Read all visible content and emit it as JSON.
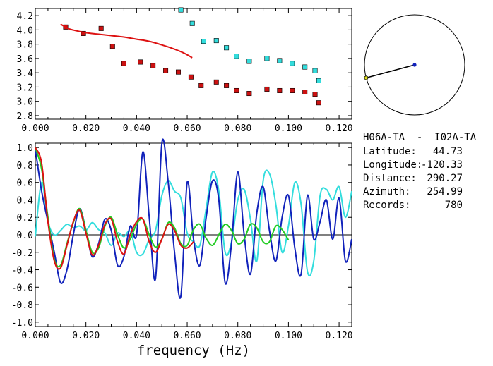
{
  "chart_data": [
    {
      "type": "scatter",
      "title": "",
      "xlabel": "",
      "ylabel": "",
      "xlim": [
        0.0,
        0.125
      ],
      "ylim": [
        2.75,
        4.3
      ],
      "xticks": [
        "0.000",
        "0.020",
        "0.040",
        "0.060",
        "0.080",
        "0.100",
        "0.120"
      ],
      "yticks": [
        "2.8",
        "3.0",
        "3.2",
        "3.4",
        "3.6",
        "3.8",
        "4.0",
        "4.2"
      ],
      "series": [
        {
          "kind": "markers",
          "color": "#cc1111",
          "points": [
            [
              0.012,
              4.04
            ],
            [
              0.019,
              3.95
            ],
            [
              0.026,
              4.02
            ],
            [
              0.0305,
              3.77
            ],
            [
              0.035,
              3.53
            ],
            [
              0.0415,
              3.55
            ],
            [
              0.0465,
              3.5
            ],
            [
              0.0515,
              3.43
            ],
            [
              0.0565,
              3.41
            ],
            [
              0.0615,
              3.34
            ],
            [
              0.0655,
              3.22
            ],
            [
              0.0715,
              3.27
            ],
            [
              0.0755,
              3.22
            ],
            [
              0.0795,
              3.15
            ],
            [
              0.0845,
              3.11
            ],
            [
              0.0915,
              3.17
            ],
            [
              0.0965,
              3.15
            ],
            [
              0.1015,
              3.15
            ],
            [
              0.1065,
              3.13
            ],
            [
              0.1105,
              3.1
            ],
            [
              0.112,
              2.98
            ]
          ]
        },
        {
          "kind": "markers",
          "color": "#33dddd",
          "points": [
            [
              0.0575,
              4.28
            ],
            [
              0.062,
              4.09
            ],
            [
              0.0665,
              3.84
            ],
            [
              0.0715,
              3.85
            ],
            [
              0.0755,
              3.75
            ],
            [
              0.0795,
              3.63
            ],
            [
              0.0845,
              3.56
            ],
            [
              0.0915,
              3.6
            ],
            [
              0.0965,
              3.57
            ],
            [
              0.1015,
              3.53
            ],
            [
              0.1065,
              3.48
            ],
            [
              0.1105,
              3.43
            ],
            [
              0.112,
              3.29
            ]
          ]
        },
        {
          "kind": "curve",
          "color": "#dd1111",
          "points": [
            [
              0.01,
              4.08
            ],
            [
              0.013,
              4.02
            ],
            [
              0.016,
              3.99
            ],
            [
              0.02,
              3.96
            ],
            [
              0.025,
              3.94
            ],
            [
              0.03,
              3.92
            ],
            [
              0.035,
              3.9
            ],
            [
              0.04,
              3.87
            ],
            [
              0.045,
              3.84
            ],
            [
              0.05,
              3.79
            ],
            [
              0.055,
              3.73
            ],
            [
              0.059,
              3.67
            ],
            [
              0.062,
              3.61
            ]
          ]
        }
      ]
    },
    {
      "type": "line",
      "title": "",
      "xlabel": "frequency (Hz)",
      "ylabel": "",
      "xlim": [
        0.0,
        0.125
      ],
      "ylim": [
        -1.05,
        1.05
      ],
      "xticks": [
        "0.000",
        "0.020",
        "0.040",
        "0.060",
        "0.080",
        "0.100",
        "0.120"
      ],
      "yticks": [
        "-1.0",
        "-0.8",
        "-0.6",
        "-0.4",
        "-0.2",
        "0.0",
        "0.2",
        "0.4",
        "0.6",
        "0.8",
        "1.0"
      ],
      "zero_line": true,
      "series": [
        {
          "color": "#33dddd",
          "x": [
            0.0,
            0.0025,
            0.005,
            0.0075,
            0.01,
            0.0125,
            0.015,
            0.0175,
            0.02,
            0.0225,
            0.025,
            0.0275,
            0.03,
            0.0325,
            0.035,
            0.0375,
            0.04,
            0.0425,
            0.045,
            0.0475,
            0.05,
            0.0525,
            0.055,
            0.0575,
            0.06,
            0.0625,
            0.065,
            0.0675,
            0.07,
            0.0725,
            0.075,
            0.0775,
            0.08,
            0.0825,
            0.085,
            0.0875,
            0.09,
            0.0925,
            0.095,
            0.0975,
            0.1,
            0.1025,
            0.105,
            0.1075,
            0.11,
            0.1125,
            0.115,
            0.1175,
            0.12,
            0.1225,
            0.125
          ],
          "y": [
            -0.02,
            0.6,
            0.15,
            0.0,
            0.05,
            0.12,
            0.08,
            0.1,
            0.05,
            0.14,
            0.06,
            0.02,
            -0.12,
            0.02,
            -0.02,
            0.04,
            -0.2,
            -0.22,
            -0.05,
            0.05,
            0.45,
            0.62,
            0.5,
            0.42,
            0.02,
            -0.08,
            -0.12,
            0.3,
            0.72,
            0.5,
            -0.2,
            -0.08,
            0.4,
            0.52,
            0.18,
            -0.3,
            0.62,
            0.7,
            0.35,
            -0.2,
            0.1,
            0.6,
            0.35,
            -0.42,
            -0.3,
            0.45,
            0.52,
            0.4,
            0.55,
            0.2,
            0.5
          ]
        },
        {
          "color": "#1122bb",
          "x": [
            0.0,
            0.0025,
            0.005,
            0.0075,
            0.01,
            0.0125,
            0.015,
            0.0175,
            0.02,
            0.0225,
            0.025,
            0.0275,
            0.03,
            0.0325,
            0.035,
            0.0375,
            0.04,
            0.0425,
            0.045,
            0.0475,
            0.05,
            0.0525,
            0.055,
            0.0575,
            0.06,
            0.0625,
            0.065,
            0.0675,
            0.07,
            0.0725,
            0.075,
            0.0775,
            0.08,
            0.0825,
            0.085,
            0.0875,
            0.09,
            0.0925,
            0.095,
            0.0975,
            0.1,
            0.1025,
            0.105,
            0.1075,
            0.11,
            0.1125,
            0.115,
            0.1175,
            0.12,
            0.1225,
            0.125
          ],
          "y": [
            0.98,
            0.5,
            0.15,
            -0.2,
            -0.55,
            -0.4,
            0.0,
            0.3,
            0.05,
            -0.25,
            -0.1,
            0.18,
            0.05,
            -0.35,
            -0.25,
            0.1,
            0.0,
            0.95,
            0.2,
            -0.5,
            1.05,
            0.6,
            -0.2,
            -0.7,
            0.6,
            -0.05,
            -0.35,
            0.2,
            0.62,
            0.4,
            -0.55,
            -0.1,
            0.72,
            0.0,
            -0.45,
            0.25,
            0.55,
            0.05,
            -0.3,
            0.2,
            0.45,
            -0.15,
            -0.45,
            0.45,
            -0.05,
            0.15,
            0.4,
            -0.05,
            0.42,
            -0.3,
            -0.05
          ]
        },
        {
          "color": "#22cc22",
          "x": [
            0.0,
            0.0025,
            0.005,
            0.0075,
            0.01,
            0.0125,
            0.015,
            0.0175,
            0.02,
            0.0225,
            0.025,
            0.0275,
            0.03,
            0.0325,
            0.035,
            0.0375,
            0.04,
            0.0425,
            0.045,
            0.0475,
            0.05,
            0.0525,
            0.055,
            0.0575,
            0.06,
            0.0625,
            0.065,
            0.0675,
            0.07,
            0.0725,
            0.075,
            0.0775,
            0.08,
            0.0825,
            0.085,
            0.0875,
            0.09,
            0.0925,
            0.095,
            0.0975,
            0.1
          ],
          "y": [
            1.0,
            0.75,
            0.2,
            -0.28,
            -0.35,
            -0.1,
            0.14,
            0.3,
            0.05,
            -0.2,
            -0.15,
            0.1,
            0.2,
            0.0,
            -0.15,
            -0.05,
            0.12,
            0.18,
            0.0,
            -0.14,
            -0.05,
            0.14,
            0.08,
            -0.1,
            -0.12,
            0.06,
            0.12,
            -0.04,
            -0.12,
            0.0,
            0.12,
            0.05,
            -0.1,
            -0.05,
            0.12,
            0.08,
            -0.08,
            -0.08,
            0.1,
            0.06,
            -0.06
          ]
        },
        {
          "color": "#dd1111",
          "x": [
            0.0,
            0.0025,
            0.005,
            0.0075,
            0.01,
            0.0125,
            0.015,
            0.0175,
            0.02,
            0.0225,
            0.025,
            0.0275,
            0.03,
            0.0325,
            0.035,
            0.0375,
            0.04,
            0.0425,
            0.045,
            0.0475,
            0.05,
            0.0525,
            0.055,
            0.0575,
            0.06,
            0.0625
          ],
          "y": [
            1.0,
            0.82,
            0.15,
            -0.3,
            -0.38,
            -0.12,
            0.15,
            0.28,
            0.02,
            -0.23,
            -0.12,
            0.12,
            0.18,
            -0.08,
            -0.22,
            0.0,
            0.15,
            0.18,
            -0.08,
            -0.2,
            -0.05,
            0.12,
            0.05,
            -0.12,
            -0.15,
            -0.08
          ]
        }
      ]
    }
  ],
  "info": {
    "station_pair": "H06A-TA  -  I02A-TA",
    "rows": [
      {
        "label": "Latitude:",
        "value": "44.73"
      },
      {
        "label": "Longitude:",
        "value": "-120.33"
      },
      {
        "label": "Distance:",
        "value": "290.27"
      },
      {
        "label": "Azimuth:",
        "value": "254.99"
      },
      {
        "label": "Records:",
        "value": "780"
      }
    ]
  },
  "azimuth_dial": {
    "azimuth_deg": 254.99,
    "colors": {
      "line": "#000000",
      "center_dot": "#1122bb",
      "end_dot": "#dddd22"
    }
  }
}
